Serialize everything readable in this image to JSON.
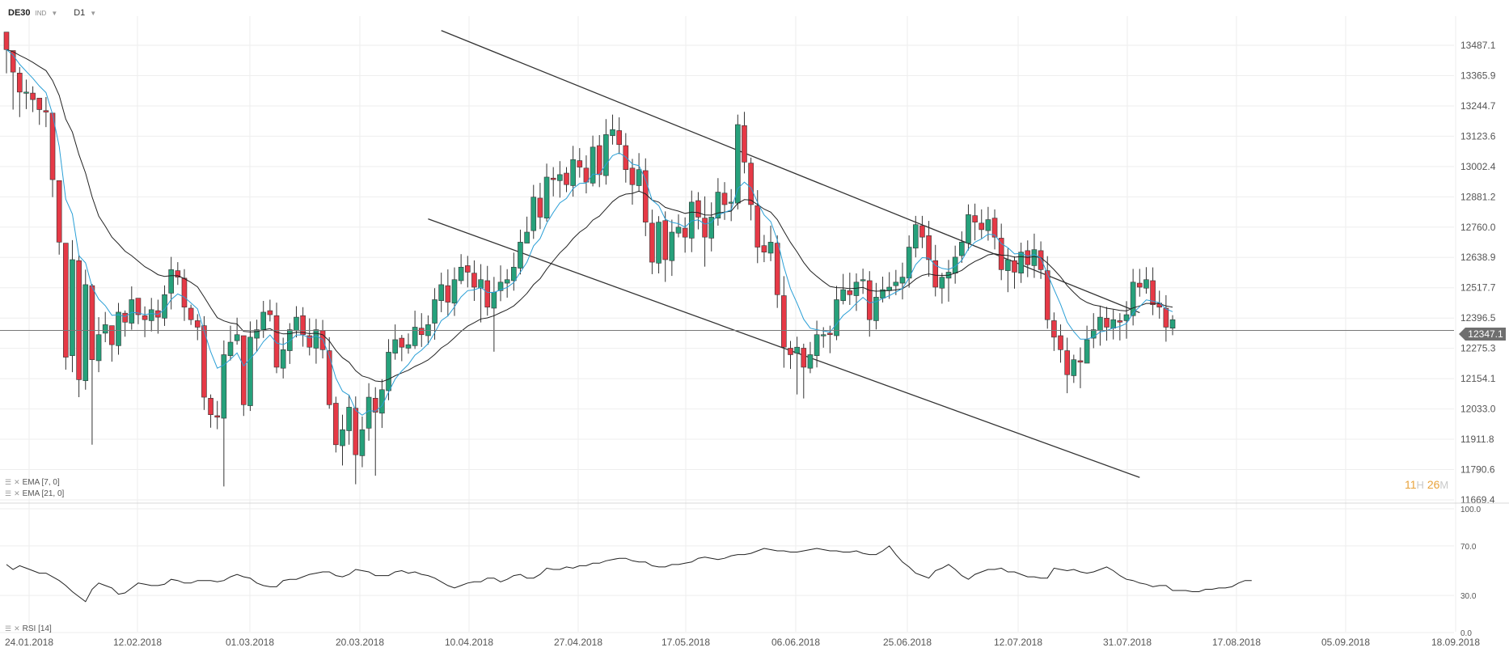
{
  "header": {
    "symbol": "DE30",
    "instrument_class": "IND",
    "timeframe": "D1"
  },
  "indicators": {
    "ema_fast": "EMA [7, 0]",
    "ema_slow": "EMA [21, 0]",
    "rsi": "RSI [14]"
  },
  "timer": {
    "hours": "11",
    "hours_unit": "H",
    "minutes": "26",
    "minutes_unit": "M"
  },
  "colors": {
    "bull": "#26a17b",
    "bear": "#e63946",
    "ema_fast": "#2a9fd6",
    "ema_slow": "#222222",
    "grid": "#eeeeee"
  },
  "chart_data": {
    "type": "candlestick",
    "instrument": "DE30",
    "timeframe": "D1",
    "current_price": 12347.1,
    "y_ticks": [
      13487.1,
      13365.9,
      13244.7,
      13123.6,
      13002.4,
      12881.2,
      12760.0,
      12638.9,
      12517.7,
      12396.5,
      12275.3,
      12154.1,
      12033.0,
      11911.8,
      11790.6,
      11669.4
    ],
    "y_tick_labels": [
      "13487.1",
      "13365.9",
      "13244.7",
      "13123.6",
      "13002.4",
      "12881.2",
      "12760.0",
      "12638.9",
      "12517.7",
      "12396.5",
      "12275.3",
      "12154.1",
      "12033.0",
      "11911.8",
      "11790.6",
      "11669.4"
    ],
    "price_label": "12347.1",
    "x_labels": [
      "24.01.2018",
      "12.02.2018",
      "01.03.2018",
      "20.03.2018",
      "10.04.2018",
      "27.04.2018",
      "17.05.2018",
      "06.06.2018",
      "25.06.2018",
      "12.07.2018",
      "31.07.2018",
      "17.08.2018",
      "05.09.2018",
      "18.09.2018"
    ],
    "closes": [
      13470,
      13380,
      13300,
      13300,
      13270,
      13230,
      13220,
      12950,
      12700,
      12240,
      12630,
      12150,
      12530,
      12230,
      12330,
      12370,
      12290,
      12420,
      12380,
      12470,
      12410,
      12390,
      12430,
      12400,
      12490,
      12590,
      12560,
      12440,
      12390,
      12360,
      12080,
      12010,
      12000,
      12250,
      12300,
      12330,
      12050,
      12320,
      12350,
      12420,
      12410,
      12200,
      12270,
      12350,
      12400,
      12330,
      12280,
      12350,
      12270,
      12050,
      11890,
      11950,
      12040,
      11850,
      11950,
      12080,
      12020,
      12110,
      12260,
      12310,
      12280,
      12290,
      12360,
      12330,
      12370,
      12470,
      12530,
      12460,
      12550,
      12600,
      12580,
      12520,
      12550,
      12440,
      12500,
      12540,
      12550,
      12600,
      12700,
      12740,
      12880,
      12800,
      12960,
      12950,
      12970,
      12930,
      13030,
      13000,
      12940,
      13080,
      12970,
      13130,
      13150,
      13090,
      12990,
      12930,
      12990,
      12780,
      12620,
      12780,
      12630,
      12740,
      12760,
      12720,
      12860,
      12800,
      12720,
      12800,
      12900,
      12850,
      12860,
      13170,
      13020,
      12850,
      12680,
      12660,
      12700,
      12490,
      12280,
      12250,
      12280,
      12200,
      12250,
      12330,
      12330,
      12330,
      12470,
      12510,
      12490,
      12540,
      12550,
      12390,
      12480,
      12510,
      12520,
      12540,
      12560,
      12680,
      12770,
      12720,
      12630,
      12520,
      12560,
      12580,
      12640,
      12700,
      12810,
      12780,
      12750,
      12790,
      12720,
      12590,
      12630,
      12580,
      12660,
      12610,
      12670,
      12590,
      12390,
      12320,
      12270,
      12170,
      12230,
      12220,
      12310,
      12350,
      12400,
      12360,
      12390,
      12380,
      12410,
      12540,
      12520,
      12550,
      12450,
      12440,
      12360,
      12390
    ],
    "highs": [
      13494,
      13433,
      13400,
      13350,
      13323,
      13260,
      13280,
      13000,
      12750,
      12665,
      12708,
      12650,
      12590,
      12533,
      12400,
      12421,
      12320,
      12457,
      12427,
      12523,
      12467,
      12443,
      12477,
      12470,
      12527,
      12641,
      12620,
      12592,
      12450,
      12412,
      12404,
      12091,
      12065,
      12307,
      12366,
      12398,
      12324,
      12383,
      12390,
      12465,
      12470,
      12458,
      12318,
      12376,
      12444,
      12440,
      12395,
      12393,
      12389,
      12320,
      12082,
      12010,
      12090,
      12083,
      12003,
      12136,
      12120,
      12152,
      12312,
      12371,
      12329,
      12335,
      12426,
      12416,
      12407,
      12516,
      12578,
      12591,
      12599,
      12652,
      12645,
      12627,
      12612,
      12605,
      12561,
      12607,
      12592,
      12658,
      12750,
      12802,
      12929,
      12937,
      13014,
      13000,
      13024,
      13000,
      13085,
      13076,
      13047,
      13126,
      13128,
      13192,
      13210,
      13199,
      13136,
      13033,
      13056,
      13035,
      12830,
      12804,
      12823,
      12790,
      12811,
      12799,
      12906,
      12900,
      12883,
      12859,
      12956,
      12940,
      12912,
      13210,
      13221,
      13038,
      12908,
      12729,
      12766,
      12727,
      12564,
      12305,
      12322,
      12294,
      12301,
      12386,
      12360,
      12366,
      12525,
      12573,
      12578,
      12575,
      12594,
      12584,
      12537,
      12562,
      12580,
      12589,
      12618,
      12727,
      12805,
      12805,
      12785,
      12689,
      12577,
      12629,
      12686,
      12743,
      12851,
      12854,
      12831,
      12841,
      12831,
      12774,
      12675,
      12643,
      12698,
      12707,
      12734,
      12703,
      12644,
      12419,
      12371,
      12318,
      12250,
      12279,
      12366,
      12416,
      12446,
      12441,
      12430,
      12416,
      12464,
      12593,
      12593,
      12600,
      12599,
      12506,
      12488,
      12408
    ],
    "lows": [
      13375,
      13230,
      13200,
      13232,
      13220,
      13169,
      13160,
      12880,
      12650,
      12190,
      12180,
      12080,
      12110,
      11890,
      12180,
      12300,
      12222,
      12250,
      12322,
      12350,
      12372,
      12320,
      12343,
      12334,
      12365,
      12431,
      12529,
      12385,
      12369,
      12308,
      12029,
      11958,
      11952,
      11723,
      12227,
      12290,
      12005,
      12025,
      12262,
      12317,
      12383,
      12176,
      12155,
      12213,
      12319,
      12282,
      12247,
      12214,
      12235,
      12034,
      11859,
      11807,
      11890,
      11732,
      11800,
      11906,
      11766,
      11957,
      12068,
      12230,
      12224,
      12254,
      12273,
      12281,
      12290,
      12310,
      12420,
      12403,
      12405,
      12532,
      12519,
      12465,
      12379,
      12406,
      12262,
      12464,
      12478,
      12506,
      12571,
      12697,
      12713,
      12752,
      12782,
      12883,
      12878,
      12900,
      12882,
      12958,
      12895,
      12923,
      12920,
      12930,
      13090,
      13052,
      12938,
      12850,
      12901,
      12724,
      12572,
      12575,
      12541,
      12565,
      12719,
      12658,
      12660,
      12751,
      12602,
      12663,
      12766,
      12789,
      12784,
      12831,
      12975,
      12787,
      12616,
      12620,
      12624,
      12437,
      12198,
      12193,
      12091,
      12075,
      12176,
      12199,
      12278,
      12256,
      12308,
      12451,
      12449,
      12425,
      12493,
      12322,
      12351,
      12459,
      12473,
      12488,
      12471,
      12518,
      12639,
      12676,
      12562,
      12483,
      12454,
      12462,
      12534,
      12617,
      12667,
      12707,
      12715,
      12706,
      12671,
      12548,
      12500,
      12514,
      12537,
      12560,
      12557,
      12553,
      12354,
      12265,
      12218,
      12096,
      12137,
      12116,
      12230,
      12276,
      12286,
      12306,
      12311,
      12307,
      12314,
      12367,
      12482,
      12494,
      12408,
      12394,
      12302,
      12328
    ],
    "ema_7": [
      13470,
      13448,
      13411,
      13383,
      13355,
      13324,
      13298,
      13211,
      13083,
      12872,
      12812,
      12646,
      12617,
      12520,
      12472,
      12446,
      12407,
      12410,
      12402,
      12419,
      12417,
      12410,
      12415,
      12411,
      12431,
      12471,
      12493,
      12480,
      12457,
      12433,
      12345,
      12261,
      12196,
      12209,
      12232,
      12257,
      12205,
      12234,
      12263,
      12302,
      12329,
      12297,
      12290,
      12305,
      12329,
      12329,
      12317,
      12325,
      12311,
      12245,
      12156,
      12104,
      12088,
      12028,
      12008,
      12026,
      12024,
      12046,
      12100,
      12153,
      12185,
      12211,
      12248,
      12268,
      12294,
      12338,
      12386,
      12405,
      12441,
      12481,
      12506,
      12509,
      12519,
      12499,
      12499,
      12509,
      12519,
      12539,
      12580,
      12620,
      12685,
      12714,
      12776,
      12819,
      12857,
      12875,
      12914,
      12935,
      12936,
      12972,
      12971,
      13011,
      13046,
      13057,
      13040,
      13012,
      13006,
      12950,
      12868,
      12846,
      12792,
      12779,
      12774,
      12760,
      12785,
      12789,
      12772,
      12779,
      12809,
      12819,
      12829,
      12914,
      12940,
      12918,
      12859,
      12809,
      12782,
      12709,
      12602,
      12514,
      12456,
      12392,
      12356,
      12350,
      12345,
      12341,
      12373,
      12407,
      12428,
      12456,
      12479,
      12457,
      12462,
      12474,
      12486,
      12500,
      12515,
      12556,
      12610,
      12638,
      12636,
      12607,
      12595,
      12591,
      12603,
      12627,
      12673,
      12700,
      12713,
      12732,
      12729,
      12694,
      12678,
      12653,
      12655,
      12644,
      12651,
      12636,
      12574,
      12511,
      12451,
      12380,
      12342,
      12312,
      12312,
      12321,
      12341,
      12346,
      12357,
      12363,
      12375,
      12416,
      12442,
      12469,
      12464,
      12458,
      12433,
      12422
    ],
    "ema_21": [
      13470,
      13462,
      13447,
      13434,
      13419,
      13402,
      13386,
      13346,
      13287,
      13192,
      13140,
      13050,
      12976,
      12881,
      12804,
      12764,
      12720,
      12693,
      12664,
      12646,
      12624,
      12602,
      12587,
      12570,
      12563,
      12566,
      12566,
      12554,
      12539,
      12521,
      12481,
      12438,
      12398,
      12385,
      12377,
      12373,
      12343,
      12341,
      12342,
      12349,
      12354,
      12340,
      12333,
      12334,
      12340,
      12339,
      12334,
      12336,
      12330,
      12305,
      12267,
      12238,
      12220,
      12186,
      12165,
      12157,
      12145,
      12142,
      12152,
      12166,
      12177,
      12188,
      12203,
      12215,
      12229,
      12251,
      12277,
      12294,
      12318,
      12343,
      12364,
      12378,
      12393,
      12397,
      12406,
      12418,
      12430,
      12445,
      12469,
      12495,
      12530,
      12554,
      12592,
      12625,
      12657,
      12682,
      12714,
      12740,
      12758,
      12788,
      12804,
      12833,
      12862,
      12882,
      12892,
      12895,
      12904,
      12893,
      12868,
      12860,
      12839,
      12831,
      12824,
      12815,
      12820,
      12818,
      12809,
      12808,
      12817,
      12820,
      12824,
      12855,
      12870,
      12868,
      12850,
      12832,
      12820,
      12790,
      12744,
      12699,
      12661,
      12619,
      12586,
      12563,
      12542,
      12523,
      12518,
      12517,
      12514,
      12516,
      12519,
      12507,
      12504,
      12505,
      12506,
      12509,
      12514,
      12530,
      12552,
      12567,
      12573,
      12568,
      12567,
      12568,
      12576,
      12587,
      12607,
      12623,
      12635,
      12649,
      12654,
      12648,
      12647,
      12640,
      12642,
      12639,
      12642,
      12638,
      12616,
      12590,
      12561,
      12526,
      12499,
      12474,
      12459,
      12449,
      12444,
      12436,
      12432,
      12427,
      12425,
      12437,
      12445,
      12455,
      12455,
      12454,
      12445,
      12440
    ],
    "rsi_14": [
      55,
      51,
      54,
      52,
      50,
      48,
      48,
      45,
      42,
      38,
      33,
      29,
      25,
      35,
      40,
      38,
      36,
      31,
      32,
      36,
      40,
      39,
      38,
      38,
      39,
      43,
      42,
      40,
      40,
      42,
      42,
      42,
      41,
      42,
      45,
      47,
      45,
      44,
      40,
      38,
      37,
      37,
      42,
      43,
      43,
      45,
      47,
      48,
      49,
      49,
      46,
      45,
      47,
      51,
      50,
      49,
      46,
      46,
      46,
      49,
      50,
      48,
      49,
      47,
      46,
      44,
      41,
      38,
      36,
      38,
      40,
      41,
      41,
      44,
      44,
      41,
      43,
      46,
      47,
      44,
      44,
      47,
      52,
      51,
      51,
      53,
      52,
      54,
      54,
      56,
      56,
      58,
      59,
      60,
      60,
      58,
      57,
      57,
      54,
      53,
      53,
      55,
      55,
      56,
      57,
      60,
      61,
      60,
      59,
      60,
      62,
      63,
      63,
      64,
      66,
      68,
      67,
      66,
      66,
      65,
      65,
      66,
      67,
      68,
      67,
      66,
      66,
      65,
      65,
      66,
      64,
      63,
      63,
      66,
      70,
      63,
      57,
      53,
      48,
      46,
      44,
      50,
      52,
      55,
      51,
      46,
      43,
      47,
      49,
      51,
      51,
      52,
      49,
      49,
      47,
      45,
      45,
      44,
      44,
      52,
      51,
      50,
      51,
      49,
      48,
      49,
      51,
      53,
      50,
      46,
      43,
      42,
      40,
      39,
      37,
      38,
      38,
      34,
      34,
      34,
      33,
      33,
      35,
      35,
      36,
      36,
      37,
      40,
      42,
      42
    ],
    "rsi_ticks": [
      100.0,
      70.0,
      30.0,
      0.0
    ],
    "rsi_tick_labels": [
      "100.0",
      "70.0",
      "30.0",
      "0.0"
    ],
    "trendlines": [
      {
        "from": [
          "2018-04-27",
          13546
        ],
        "to": [
          "2018-09-17",
          12418
        ]
      },
      {
        "from": [
          "2018-04-17",
          12793
        ],
        "to": [
          "2018-09-17",
          11759
        ]
      }
    ]
  }
}
